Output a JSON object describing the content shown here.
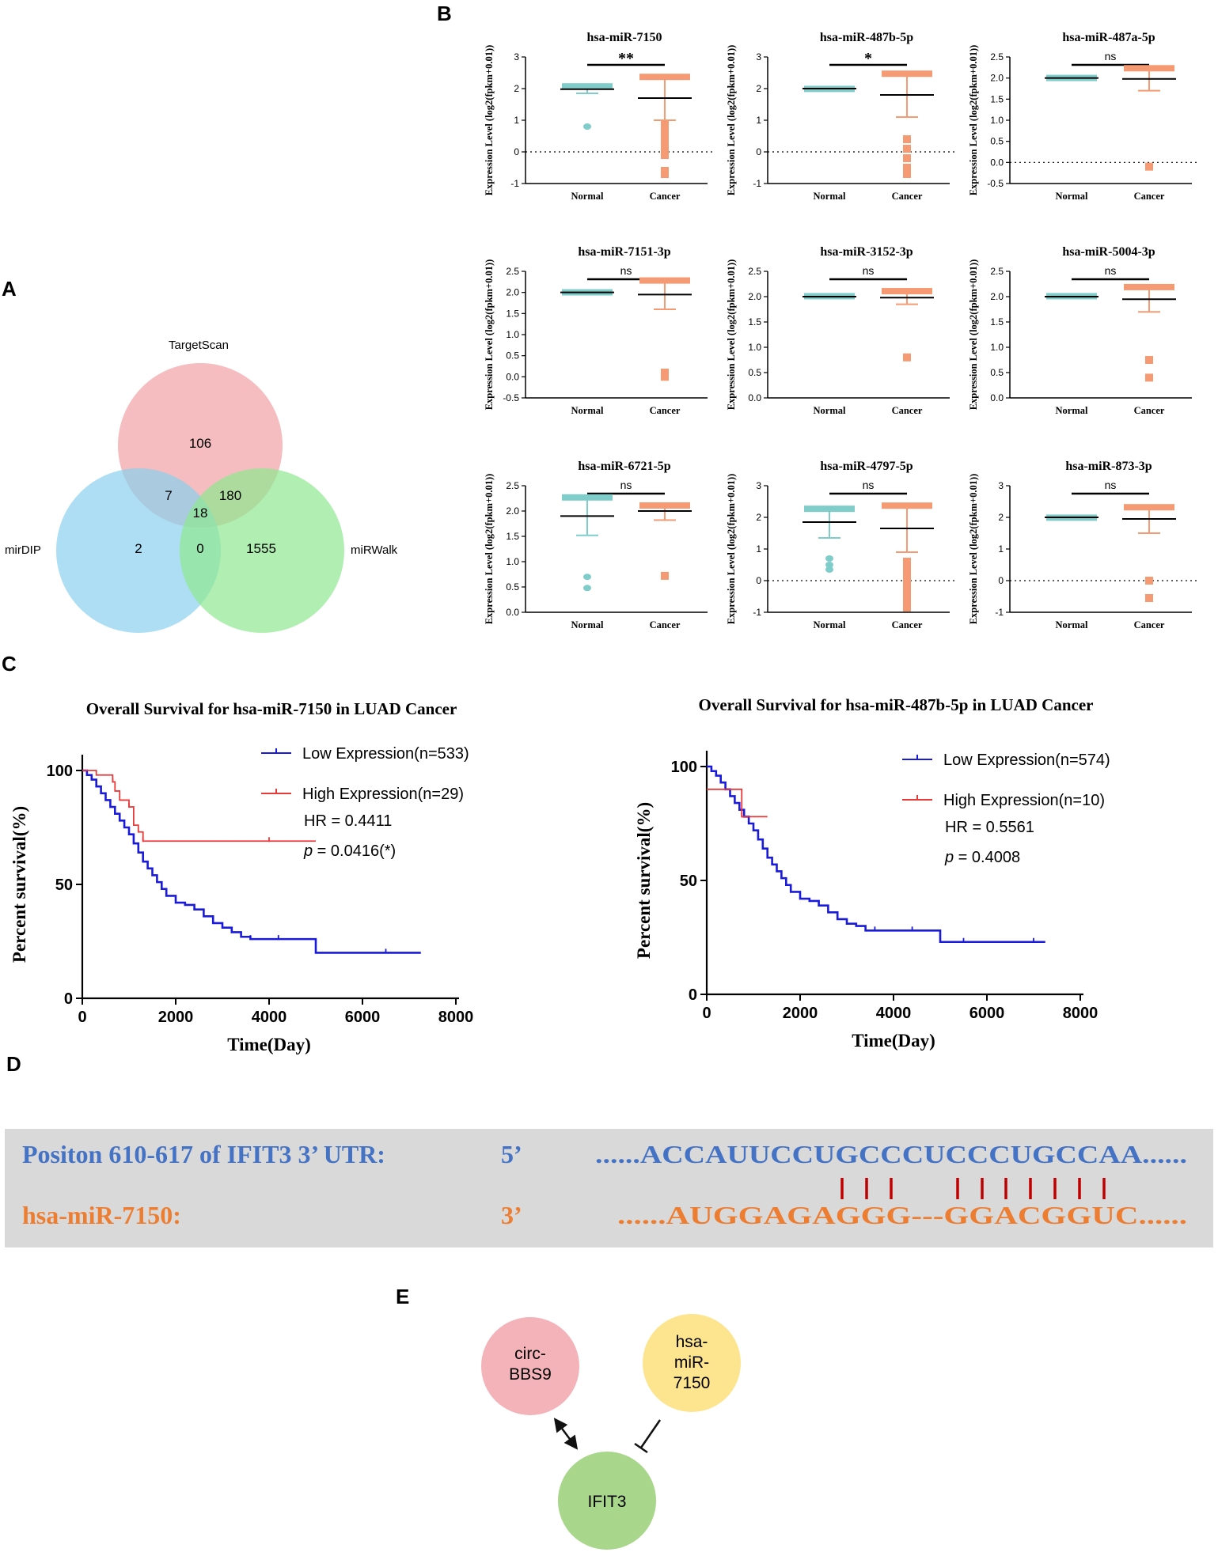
{
  "figure": {
    "panel_labels": [
      "A",
      "B",
      "C",
      "D",
      "E"
    ]
  },
  "venn": {
    "sets": [
      "TargetScan",
      "mirDIP",
      "miRWalk"
    ],
    "regions": {
      "targetscan_only": "106",
      "mirdip_only": "2",
      "mirwalk_only": "1555",
      "targetscan_mirdip": "7",
      "targetscan_mirwalk": "180",
      "mirdip_mirwalk": "0",
      "all_three": "18"
    },
    "colors": [
      "#f2a7ab",
      "#8ad0ee",
      "#8ee890"
    ]
  },
  "expression": {
    "ylabel": "Expression Level (log2(fpkm+0.01))",
    "groups": [
      "Normal",
      "Cancer"
    ],
    "group_colors": [
      "#7fcdcb",
      "#f59a72"
    ],
    "plots": [
      {
        "title": "hsa-miR-7150",
        "sig": "**",
        "ylim": [
          -1,
          3
        ],
        "ticks": [
          "-1",
          "0",
          "1",
          "2",
          "3"
        ],
        "dotted_zero": true,
        "normal": {
          "mean": 1.98,
          "sd_lo": 1.85,
          "sd_hi": 2.1,
          "outliers": [
            0.8
          ]
        },
        "cancer": {
          "mean": 1.7,
          "sd_lo": 1.0,
          "sd_hi": 2.4,
          "outliers": [
            0.9,
            0.7,
            0.5,
            0.3,
            0.1,
            -0.1,
            -0.6,
            -0.7
          ]
        }
      },
      {
        "title": "hsa-miR-487b-5p",
        "sig": "*",
        "ylim": [
          -1,
          3
        ],
        "ticks": [
          "-1",
          "0",
          "1",
          "2",
          "3"
        ],
        "dotted_zero": true,
        "normal": {
          "mean": 2.0,
          "sd_lo": 1.98,
          "sd_hi": 2.02,
          "outliers": []
        },
        "cancer": {
          "mean": 1.8,
          "sd_lo": 1.1,
          "sd_hi": 2.5,
          "outliers": [
            0.4,
            0.1,
            -0.2,
            -0.5,
            -0.7
          ]
        }
      },
      {
        "title": "hsa-miR-487a-5p",
        "sig": "ns",
        "ylim": [
          -0.5,
          2.5
        ],
        "ticks": [
          "-0.5",
          "0.0",
          "0.5",
          "1.0",
          "1.5",
          "2.0",
          "2.5"
        ],
        "dotted_zero": true,
        "normal": {
          "mean": 2.0,
          "sd_lo": 1.98,
          "sd_hi": 2.02,
          "outliers": []
        },
        "cancer": {
          "mean": 1.98,
          "sd_lo": 1.7,
          "sd_hi": 2.25,
          "outliers": [
            -0.1
          ]
        }
      },
      {
        "title": "hsa-miR-7151-3p",
        "sig": "ns",
        "ylim": [
          -0.5,
          2.5
        ],
        "ticks": [
          "-0.5",
          "0.0",
          "0.5",
          "1.0",
          "1.5",
          "2.0",
          "2.5"
        ],
        "dotted_zero": false,
        "normal": {
          "mean": 2.0,
          "sd_lo": 1.98,
          "sd_hi": 2.02,
          "outliers": []
        },
        "cancer": {
          "mean": 1.95,
          "sd_lo": 1.6,
          "sd_hi": 2.3,
          "outliers": [
            0.1,
            0.0
          ]
        }
      },
      {
        "title": "hsa-miR-3152-3p",
        "sig": "ns",
        "ylim": [
          0,
          2.5
        ],
        "ticks": [
          "0.0",
          "0.5",
          "1.0",
          "1.5",
          "2.0",
          "2.5"
        ],
        "dotted_zero": false,
        "normal": {
          "mean": 2.0,
          "sd_lo": 1.98,
          "sd_hi": 2.02,
          "outliers": []
        },
        "cancer": {
          "mean": 1.98,
          "sd_lo": 1.85,
          "sd_hi": 2.12,
          "outliers": [
            0.8
          ]
        }
      },
      {
        "title": "hsa-miR-5004-3p",
        "sig": "ns",
        "ylim": [
          0,
          2.5
        ],
        "ticks": [
          "0.0",
          "0.5",
          "1.0",
          "1.5",
          "2.0",
          "2.5"
        ],
        "dotted_zero": false,
        "normal": {
          "mean": 2.0,
          "sd_lo": 1.98,
          "sd_hi": 2.02,
          "outliers": []
        },
        "cancer": {
          "mean": 1.95,
          "sd_lo": 1.7,
          "sd_hi": 2.2,
          "outliers": [
            0.75,
            0.4
          ]
        }
      },
      {
        "title": "hsa-miR-6721-5p",
        "sig": "ns",
        "ylim": [
          0,
          2.5
        ],
        "ticks": [
          "0.0",
          "0.5",
          "1.0",
          "1.5",
          "2.0",
          "2.5"
        ],
        "dotted_zero": false,
        "normal": {
          "mean": 1.9,
          "sd_lo": 1.52,
          "sd_hi": 2.28,
          "outliers": [
            0.7,
            0.48
          ]
        },
        "cancer": {
          "mean": 2.0,
          "sd_lo": 1.82,
          "sd_hi": 2.12,
          "outliers": [
            0.72
          ]
        }
      },
      {
        "title": "hsa-miR-4797-5p",
        "sig": "ns",
        "ylim": [
          -1,
          3
        ],
        "ticks": [
          "-1",
          "0",
          "1",
          "2",
          "3"
        ],
        "dotted_zero": true,
        "normal": {
          "mean": 1.85,
          "sd_lo": 1.35,
          "sd_hi": 2.3,
          "outliers": [
            0.7,
            0.5,
            0.35
          ]
        },
        "cancer": {
          "mean": 1.65,
          "sd_lo": 0.9,
          "sd_hi": 2.4,
          "outliers": [
            0.6,
            0.4,
            0.2,
            0.0,
            -0.2,
            -0.4,
            -0.6,
            -0.85
          ]
        }
      },
      {
        "title": "hsa-miR-873-3p",
        "sig": "ns",
        "ylim": [
          -1,
          3
        ],
        "ticks": [
          "-1",
          "0",
          "1",
          "2",
          "3"
        ],
        "dotted_zero": true,
        "normal": {
          "mean": 2.0,
          "sd_lo": 1.98,
          "sd_hi": 2.02,
          "outliers": []
        },
        "cancer": {
          "mean": 1.95,
          "sd_lo": 1.5,
          "sd_hi": 2.35,
          "outliers": [
            0.0,
            -0.55
          ]
        }
      }
    ]
  },
  "chart_data": [
    {
      "type": "line",
      "title": "Overall Survival for hsa-miR-7150 in LUAD Cancer",
      "xlabel": "Time(Day)",
      "ylabel": "Percent survival(%)",
      "xlim": [
        0,
        8000
      ],
      "ylim": [
        0,
        100
      ],
      "xticks": [
        "0",
        "2000",
        "4000",
        "6000",
        "8000"
      ],
      "yticks": [
        "0",
        "50",
        "100"
      ],
      "hr": "HR = 0.4411",
      "p_label": "p",
      "p_value": " = 0.0416(*)",
      "series": [
        {
          "name": "Low Expression(n=533)",
          "color": "#1a1adb",
          "x": [
            0,
            100,
            200,
            300,
            400,
            500,
            600,
            700,
            800,
            900,
            1000,
            1100,
            1200,
            1300,
            1400,
            1500,
            1600,
            1700,
            1800,
            2000,
            2200,
            2400,
            2600,
            2800,
            3000,
            3200,
            3400,
            3600,
            3800,
            4000,
            4200,
            4500,
            4800,
            5000,
            5500,
            6000,
            6500,
            7000,
            7250
          ],
          "y": [
            100,
            98,
            96,
            93,
            90,
            87,
            84,
            81,
            78,
            75,
            72,
            68,
            64,
            60,
            57,
            54,
            51,
            48,
            45,
            42,
            41,
            39,
            36,
            33,
            31,
            29,
            27,
            26,
            26,
            26,
            26,
            26,
            26,
            20,
            20,
            20,
            20,
            20,
            20
          ]
        },
        {
          "name": "High Expression(n=29)",
          "color": "#e83a3a",
          "x": [
            0,
            300,
            500,
            650,
            700,
            800,
            1000,
            1100,
            1200,
            1300,
            2000,
            3000,
            4000,
            5000
          ],
          "y": [
            100,
            98,
            98,
            95,
            91,
            87,
            84,
            76,
            73,
            69,
            69,
            69,
            69,
            69
          ]
        }
      ]
    },
    {
      "type": "line",
      "title": "Overall Survival for hsa-miR-487b-5p in LUAD Cancer",
      "xlabel": "Time(Day)",
      "ylabel": "Percent survival(%)",
      "xlim": [
        0,
        8000
      ],
      "ylim": [
        0,
        100
      ],
      "xticks": [
        "0",
        "2000",
        "4000",
        "6000",
        "8000"
      ],
      "yticks": [
        "0",
        "50",
        "100"
      ],
      "hr": "HR = 0.5561",
      "p_label": "p",
      "p_value": " = 0.4008",
      "series": [
        {
          "name": "Low Expression(n=574)",
          "color": "#1a1adb",
          "x": [
            0,
            100,
            200,
            300,
            400,
            500,
            600,
            700,
            800,
            900,
            1000,
            1100,
            1200,
            1300,
            1400,
            1500,
            1600,
            1700,
            1800,
            2000,
            2200,
            2400,
            2600,
            2800,
            3000,
            3200,
            3400,
            3600,
            3800,
            4000,
            4400,
            4800,
            5000,
            5500,
            6000,
            6500,
            7000,
            7250
          ],
          "y": [
            100,
            98,
            96,
            93,
            90,
            87,
            84,
            81,
            78,
            75,
            72,
            68,
            64,
            60,
            57,
            54,
            51,
            48,
            45,
            42,
            41,
            39,
            36,
            33,
            31,
            30,
            28,
            28,
            28,
            28,
            28,
            28,
            23,
            23,
            23,
            23,
            23,
            23
          ]
        },
        {
          "name": "High Expression(n=10)",
          "color": "#e83a3a",
          "x": [
            0,
            500,
            700,
            750,
            900,
            1300
          ],
          "y": [
            90,
            90,
            90,
            78,
            78,
            78
          ]
        }
      ]
    }
  ],
  "alignment": {
    "utr_label": "Positon 610-617 of IFIT3 3’ UTR:",
    "utr_end": "5’",
    "utr_seq": "......ACCAUUCCUGCCCUCCCUGCCAA......",
    "mir_label": "hsa-miR-7150:",
    "mir_end": "3’",
    "mir_seq": "......AUGGAGAGGG---GGACGGUC......",
    "utr_color": "#4472c4",
    "mir_color": "#ed7d31",
    "bond_color": "#c00000"
  },
  "network": {
    "nodes": [
      {
        "label": [
          "circ-",
          "BBS9"
        ],
        "color": "#f4b3b9"
      },
      {
        "label": [
          "hsa-",
          "miR-",
          "7150"
        ],
        "color": "#fde58f"
      },
      {
        "label": [
          "IFIT3"
        ],
        "color": "#a8d68a"
      }
    ]
  }
}
